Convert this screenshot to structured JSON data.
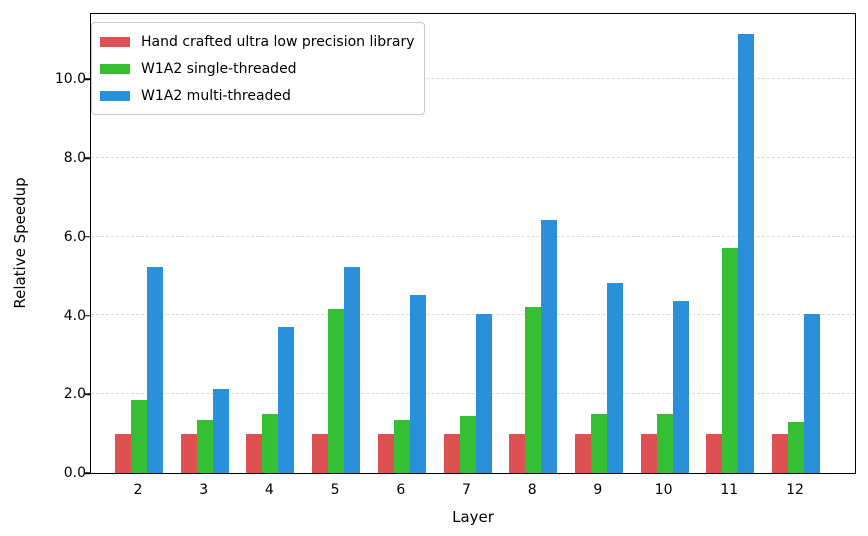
{
  "figure": {
    "background": "#ffffff"
  },
  "chart_data": {
    "type": "bar",
    "title": "",
    "xlabel": "Layer",
    "ylabel": "Relative Speedup",
    "categories": [
      "2",
      "3",
      "4",
      "5",
      "6",
      "7",
      "8",
      "9",
      "10",
      "11",
      "12"
    ],
    "series": [
      {
        "name": "Hand crafted ultra low precision library",
        "color": "#DD5153",
        "values": [
          1.0,
          1.0,
          1.0,
          1.0,
          1.0,
          1.0,
          1.0,
          1.0,
          1.0,
          1.0,
          1.0
        ]
      },
      {
        "name": "W1A2 single-threaded",
        "color": "#35BF35",
        "values": [
          1.85,
          1.35,
          1.5,
          4.16,
          1.35,
          1.45,
          4.21,
          1.51,
          1.51,
          5.7,
          1.3
        ]
      },
      {
        "name": "W1A2 multi-threaded",
        "color": "#2A90D9",
        "values": [
          5.22,
          2.13,
          3.71,
          5.23,
          4.52,
          4.03,
          6.42,
          4.82,
          4.36,
          11.15,
          4.04
        ]
      }
    ],
    "ylim": [
      0,
      11.7
    ],
    "yticks": [
      0,
      2,
      4,
      6,
      8,
      10
    ],
    "ytick_labels": [
      "0.0",
      "2.0",
      "4.0",
      "6.0",
      "8.0",
      "10.0"
    ],
    "grid": "horizontal-dashed",
    "gridline_color": "#d9d9d9",
    "legend_position": "upper-left"
  }
}
